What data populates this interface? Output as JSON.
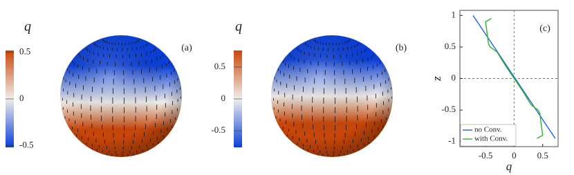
{
  "chart_data": [
    {
      "type": "sphere",
      "label": "q",
      "panel": "(a)",
      "clim": [
        -0.52,
        0.52
      ],
      "ticks": [
        0.5,
        0,
        -0.5
      ],
      "colormap": [
        "#0a3fd8",
        "#f0eeea",
        "#c8470a"
      ],
      "band": 0.1
    },
    {
      "type": "sphere",
      "label": "q",
      "panel": "(b)",
      "clim": [
        -0.76,
        0.76
      ],
      "ticks": [
        0.5,
        0,
        -0.5
      ],
      "colormap": [
        "#0a3fd8",
        "#f0eeea",
        "#c8470a"
      ],
      "band": 0
    },
    {
      "type": "line",
      "panel": "(c)",
      "xlabel": "q",
      "ylabel": "z",
      "xlim": [
        -0.95,
        0.77
      ],
      "ylim": [
        -1.08,
        1.08
      ],
      "xticks": [
        -0.5,
        0,
        0.5
      ],
      "yticks": [
        1,
        0.5,
        0,
        -0.5,
        -1
      ],
      "zero_lines": true,
      "legend": "lower left",
      "series": [
        {
          "name": "no Conv.",
          "color": "#1f5fe0",
          "x": [
            -0.72,
            0.72
          ],
          "values": [
            1,
            -0.95
          ]
        },
        {
          "name": "with Conv.",
          "color": "#2bb52b",
          "x": [
            -0.4,
            -0.5,
            -0.47,
            -0.45,
            -0.42,
            -0.3,
            -0.15,
            0,
            0.15,
            0.3,
            0.42,
            0.45,
            0.47,
            0.5,
            0.4
          ],
          "values": [
            0.95,
            0.9,
            0.7,
            0.55,
            0.5,
            0.42,
            0.2,
            0,
            -0.2,
            -0.42,
            -0.5,
            -0.55,
            -0.7,
            -0.9,
            -0.95
          ]
        }
      ]
    }
  ]
}
